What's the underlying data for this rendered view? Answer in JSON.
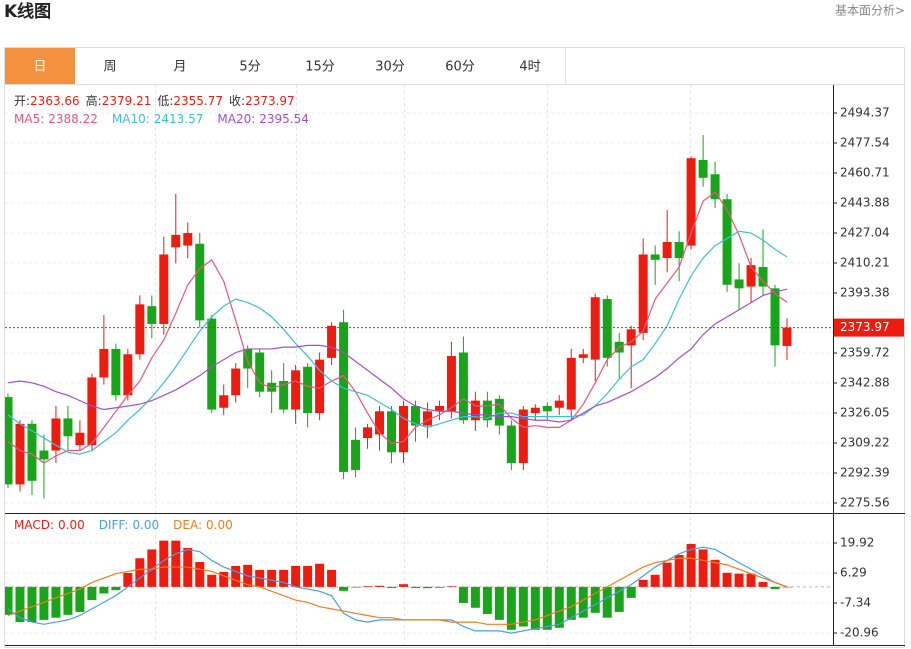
{
  "header": {
    "title": "K线图",
    "link": "基本面分析>"
  },
  "tabs": {
    "items": [
      "日",
      "周",
      "月",
      "5分",
      "15分",
      "30分",
      "60分",
      "4时"
    ],
    "active": 0
  },
  "chart_data": [
    {
      "type": "candlestick",
      "ohlc_legend": [
        {
          "label": "开:",
          "value": 2363.66
        },
        {
          "label": "高:",
          "value": 2379.21
        },
        {
          "label": "低:",
          "value": 2355.77
        },
        {
          "label": "收:",
          "value": 2373.97
        }
      ],
      "up_color": "#ee1b0f",
      "down_color": "#19a519",
      "open": [
        2335,
        2286,
        2320,
        2305,
        2305,
        2323,
        2308,
        2308,
        2346,
        2362,
        2336,
        2359,
        2386,
        2376,
        2419,
        2420,
        2421,
        2379,
        2329,
        2336,
        2362,
        2360,
        2343,
        2344,
        2328,
        2352,
        2326,
        2357,
        2377,
        2311,
        2312,
        2314,
        2327,
        2304,
        2330,
        2319,
        2327,
        2327,
        2360,
        2322,
        2333,
        2334,
        2319,
        2298,
        2326,
        2330,
        2329,
        2328,
        2357,
        2356,
        2390,
        2366,
        2364,
        2371,
        2415,
        2413,
        2422,
        2420,
        2468,
        2460,
        2446,
        2401,
        2397,
        2408,
        2396,
        2363.66
      ],
      "high": [
        2337,
        2322,
        2322,
        2314,
        2330,
        2330,
        2322,
        2348,
        2381,
        2365,
        2362,
        2392,
        2392,
        2425,
        2449,
        2433,
        2427,
        2381,
        2342,
        2354,
        2364,
        2362,
        2350,
        2354,
        2353,
        2354,
        2360,
        2377,
        2384,
        2318,
        2320,
        2330,
        2330,
        2333,
        2333,
        2332,
        2333,
        2366,
        2369,
        2338,
        2338,
        2336,
        2322,
        2330,
        2331,
        2332,
        2336,
        2362,
        2362,
        2393,
        2392,
        2371,
        2375,
        2424,
        2420,
        2440,
        2428,
        2470,
        2482,
        2467,
        2449,
        2410,
        2413,
        2429,
        2398,
        2379.21
      ],
      "low": [
        2284,
        2282,
        2280,
        2278,
        2298,
        2305,
        2305,
        2305,
        2342,
        2333,
        2333,
        2356,
        2368,
        2370,
        2410,
        2413,
        2374,
        2326,
        2325,
        2332,
        2340,
        2335,
        2326,
        2326,
        2320,
        2318,
        2322,
        2353,
        2289,
        2290,
        2306,
        2305,
        2298,
        2298,
        2310,
        2312,
        2322,
        2323,
        2320,
        2316,
        2318,
        2314,
        2294,
        2294,
        2322,
        2322,
        2325,
        2322,
        2354,
        2344,
        2352,
        2345,
        2340,
        2367,
        2398,
        2405,
        2400,
        2418,
        2453,
        2441,
        2394,
        2384,
        2388,
        2392,
        2352,
        2355.77
      ],
      "close": [
        2286,
        2320,
        2288,
        2300,
        2323,
        2313,
        2315,
        2346,
        2362,
        2336,
        2359,
        2387,
        2376,
        2415,
        2426,
        2427,
        2378,
        2328,
        2336,
        2351,
        2351,
        2338,
        2338,
        2328,
        2350,
        2326,
        2356,
        2375,
        2293,
        2294,
        2318,
        2327,
        2304,
        2330,
        2319,
        2327,
        2330,
        2358,
        2322,
        2333,
        2322,
        2319,
        2298,
        2328,
        2329,
        2327,
        2333,
        2357,
        2359,
        2391,
        2357,
        2360,
        2373,
        2415,
        2412,
        2422,
        2413,
        2469,
        2458,
        2446,
        2398,
        2396,
        2409,
        2397,
        2364,
        2373.97
      ],
      "series": [
        {
          "name": "MA5:",
          "value": 2388.22,
          "color": "#e8567c",
          "values": [
            2310,
            2305,
            2303,
            2298,
            2302,
            2305,
            2305,
            2309,
            2318,
            2327,
            2336,
            2344,
            2357,
            2367,
            2382,
            2398,
            2407,
            2412,
            2400,
            2378,
            2355,
            2343,
            2340,
            2342,
            2344,
            2341,
            2340,
            2344,
            2347,
            2338,
            2326,
            2315,
            2309,
            2310,
            2318,
            2322,
            2325,
            2329,
            2334,
            2330,
            2330,
            2331,
            2323,
            2318,
            2319,
            2318,
            2318,
            2322,
            2331,
            2343,
            2356,
            2363,
            2366,
            2372,
            2390,
            2399,
            2408,
            2427,
            2445,
            2450,
            2440,
            2426,
            2408,
            2400,
            2393,
            2388.22
          ]
        },
        {
          "name": "MA10:",
          "value": 2413.57,
          "color": "#3dbfd6",
          "values": [
            2325,
            2320,
            2316,
            2312,
            2308,
            2304,
            2303,
            2305,
            2310,
            2315,
            2322,
            2328,
            2335,
            2343,
            2352,
            2362,
            2372,
            2380,
            2386,
            2390,
            2388,
            2385,
            2380,
            2373,
            2365,
            2358,
            2350,
            2344,
            2340,
            2338,
            2336,
            2332,
            2328,
            2323,
            2320,
            2318,
            2320,
            2322,
            2324,
            2324,
            2323,
            2326,
            2326,
            2324,
            2324,
            2324,
            2324,
            2324,
            2325,
            2330,
            2337,
            2345,
            2352,
            2356,
            2365,
            2375,
            2390,
            2403,
            2413,
            2420,
            2424,
            2428,
            2427,
            2423,
            2418,
            2413.57
          ]
        },
        {
          "name": "MA20:",
          "value": 2395.54,
          "color": "#a350c4",
          "values": [
            2343,
            2344,
            2343,
            2341,
            2338,
            2336,
            2333,
            2330,
            2328,
            2329,
            2330,
            2331,
            2333,
            2336,
            2339,
            2343,
            2347,
            2352,
            2356,
            2360,
            2362,
            2362,
            2362,
            2363,
            2363,
            2364,
            2364,
            2363,
            2360,
            2355,
            2350,
            2345,
            2340,
            2334,
            2330,
            2328,
            2327,
            2327,
            2326,
            2325,
            2325,
            2324,
            2324,
            2323,
            2322,
            2322,
            2321,
            2322,
            2326,
            2330,
            2332,
            2335,
            2338,
            2342,
            2346,
            2351,
            2357,
            2362,
            2370,
            2376,
            2380,
            2384,
            2388,
            2392,
            2394,
            2395.54
          ]
        }
      ],
      "ylim": [
        2269.95,
        2510.64
      ],
      "yticks": [
        2494.37,
        2477.54,
        2460.71,
        2443.88,
        2427.04,
        2410.21,
        2393.38,
        2359.72,
        2342.88,
        2326.05,
        2309.22,
        2292.39,
        2275.56
      ],
      "grid": true
    },
    {
      "type": "macd",
      "histogram": {
        "name": "MACD:",
        "value": 0,
        "value_label": "0.00",
        "up_color": "#ee1b0f",
        "down_color": "#19a519",
        "values": [
          -12.7,
          -16,
          -16,
          -15,
          -14,
          -12.7,
          -11.4,
          -6,
          -3,
          -1.5,
          6.3,
          13,
          17,
          21,
          21,
          17.7,
          11.3,
          5.5,
          6.8,
          9.5,
          10,
          7.7,
          7.7,
          7.7,
          9.5,
          9.5,
          10.5,
          7.7,
          -1.8,
          -0.3,
          0.3,
          0.5,
          -0.5,
          1.2,
          -0.5,
          -0.6,
          -0.4,
          0.3,
          -7.3,
          -9.5,
          -12.3,
          -15,
          -19.5,
          -18,
          -19.5,
          -19.5,
          -18.6,
          -15,
          -14,
          -11.8,
          -14,
          -11.4,
          -5,
          3.2,
          5.5,
          11,
          14.5,
          19.5,
          17,
          12.3,
          6.4,
          6,
          6,
          2.2,
          -1,
          0
        ]
      },
      "series": [
        {
          "name": "DIFF:",
          "value": 0,
          "value_label": "0.00",
          "color": "#4a9fe0",
          "values": [
            -10,
            -14,
            -16,
            -17,
            -16,
            -15,
            -13,
            -10,
            -7,
            -4,
            0,
            4,
            8,
            12,
            15,
            17,
            16,
            12,
            9,
            7,
            5,
            4,
            3,
            2,
            0,
            -1,
            -2,
            -4,
            -12,
            -15,
            -16,
            -15,
            -15,
            -15,
            -15,
            -15,
            -15,
            -15,
            -18,
            -20,
            -20,
            -20,
            -21,
            -20,
            -19,
            -18,
            -17,
            -14,
            -11,
            -8,
            -5,
            -2,
            1,
            5,
            9,
            12,
            15,
            17,
            18,
            17,
            14,
            11,
            8,
            5,
            2,
            0
          ]
        },
        {
          "name": "DEA:",
          "value": 0,
          "value_label": "0.00",
          "color": "#f07c1e",
          "values": [
            -13,
            -11,
            -9,
            -7,
            -5,
            -3,
            -1,
            2,
            4,
            6,
            7,
            8,
            8,
            9,
            9,
            9,
            8,
            7,
            5,
            3,
            1,
            0,
            -2,
            -4,
            -6,
            -7,
            -9,
            -10,
            -11,
            -12,
            -13,
            -14,
            -14,
            -15,
            -15,
            -15,
            -15,
            -16,
            -16,
            -16,
            -17,
            -17,
            -17,
            -16,
            -15,
            -13,
            -11,
            -9,
            -6,
            -3,
            0,
            3,
            6,
            9,
            11,
            12,
            13,
            13,
            12,
            11,
            10,
            8,
            6,
            4,
            2,
            0
          ]
        }
      ],
      "ylim": [
        -26.41,
        32.65
      ],
      "yticks": [
        19.92,
        6.29,
        -7.34,
        -20.96
      ],
      "grid": true
    }
  ]
}
